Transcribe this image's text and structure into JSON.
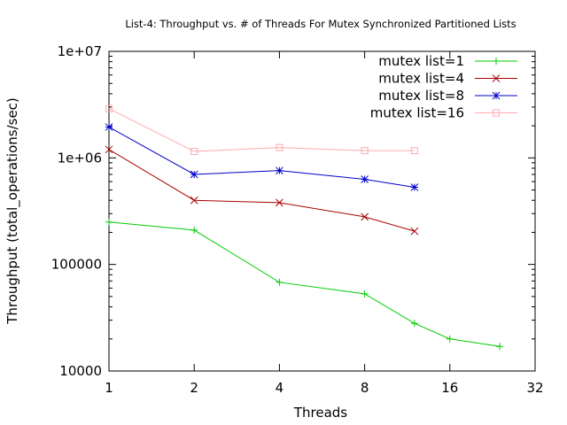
{
  "chart_data": {
    "type": "line",
    "title": "List-4: Throughput vs. # of Threads For Mutex Synchronized Partitioned Lists",
    "xlabel": "Threads",
    "ylabel": "Throughput (total_operations/sec)",
    "x_scale": "log2",
    "y_scale": "log10",
    "xlim": [
      1,
      32
    ],
    "ylim": [
      10000,
      10000000
    ],
    "x_ticks": [
      1,
      2,
      4,
      8,
      16,
      32
    ],
    "x_tick_labels": [
      "1",
      "2",
      "4",
      "8",
      "16",
      "32"
    ],
    "y_ticks": [
      10000,
      100000,
      1000000,
      10000000
    ],
    "y_tick_labels": [
      "10000",
      "100000",
      "1e+06",
      "1e+07"
    ],
    "grid": false,
    "legend_position": "top-right",
    "series": [
      {
        "name": "mutex list=1",
        "color": "#00cc00",
        "marker": "plus",
        "x": [
          1,
          2,
          4,
          8,
          12,
          16,
          24
        ],
        "y": [
          250000,
          210000,
          68000,
          53000,
          28000,
          20000,
          17000
        ]
      },
      {
        "name": "mutex list=4",
        "color": "#aa0000",
        "marker": "cross",
        "x": [
          1,
          2,
          4,
          8,
          12
        ],
        "y": [
          1200000,
          400000,
          380000,
          280000,
          205000
        ]
      },
      {
        "name": "mutex list=8",
        "color": "#0000cc",
        "marker": "star",
        "x": [
          1,
          2,
          4,
          8,
          12
        ],
        "y": [
          1950000,
          700000,
          760000,
          630000,
          530000
        ]
      },
      {
        "name": "mutex list=16",
        "color": "#ffaaaa",
        "marker": "square",
        "x": [
          1,
          2,
          4,
          8,
          12
        ],
        "y": [
          2900000,
          1150000,
          1250000,
          1170000,
          1170000
        ]
      }
    ]
  }
}
